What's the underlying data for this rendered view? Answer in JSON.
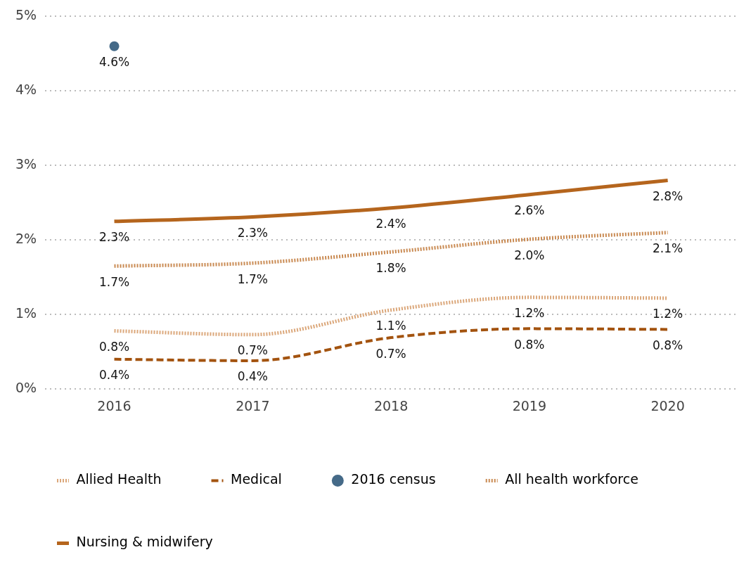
{
  "chart_data": {
    "type": "line",
    "categories": [
      "2016",
      "2017",
      "2018",
      "2019",
      "2020"
    ],
    "series": [
      {
        "name": "Allied Health",
        "color": "#dba77a",
        "line_style": "dotted",
        "values": [
          0.78,
          0.73,
          1.06,
          1.23,
          1.22
        ],
        "value_labels": [
          "0.8%",
          "0.7%",
          "1.1%",
          "1.2%",
          "1.2%"
        ]
      },
      {
        "name": "Medical",
        "color": "#a3530f",
        "line_style": "dashed",
        "values": [
          0.4,
          0.38,
          0.69,
          0.81,
          0.8
        ],
        "value_labels": [
          "0.4%",
          "0.4%",
          "0.7%",
          "0.8%",
          "0.8%"
        ]
      },
      {
        "name": "2016 census",
        "type": "scatter",
        "marker": "circle",
        "color": "#456a88",
        "values": [
          4.6,
          null,
          null,
          null,
          null
        ],
        "value_labels": [
          "4.6%",
          null,
          null,
          null,
          null
        ]
      },
      {
        "name": "All health workforce",
        "color": "#c98a52",
        "line_style": "dotted",
        "values": [
          1.65,
          1.69,
          1.84,
          2.01,
          2.1
        ],
        "value_labels": [
          "1.7%",
          "1.7%",
          "1.8%",
          "2.0%",
          "2.1%"
        ]
      },
      {
        "name": "Nursing & midwifery",
        "color": "#b5651d",
        "line_style": "solid",
        "values": [
          2.25,
          2.31,
          2.43,
          2.61,
          2.8
        ],
        "value_labels": [
          "2.3%",
          "2.3%",
          "2.4%",
          "2.6%",
          "2.8%"
        ]
      }
    ],
    "ylim": [
      0,
      5
    ],
    "yticks": [
      {
        "value": 0,
        "label": "0%"
      },
      {
        "value": 1,
        "label": "1%"
      },
      {
        "value": 2,
        "label": "2%"
      },
      {
        "value": 3,
        "label": "3%"
      },
      {
        "value": 4,
        "label": "4%"
      },
      {
        "value": 5,
        "label": "5%"
      }
    ],
    "grid": "y",
    "legend": "bottom",
    "marker": "none"
  }
}
